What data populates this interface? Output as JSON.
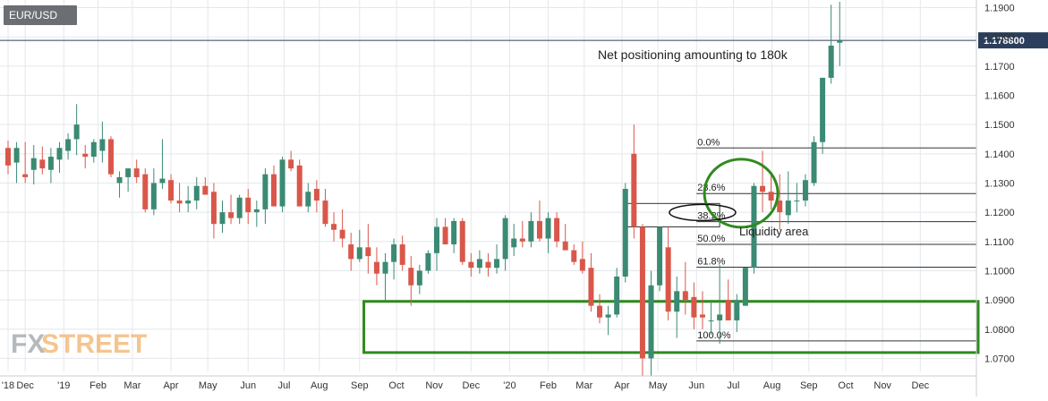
{
  "symbol": "EUR/USD",
  "watermark": {
    "fx": "FX",
    "street": "STREET"
  },
  "current_price": {
    "value": 1.1788,
    "label": "1.178800"
  },
  "annotations": {
    "net_positioning": "Net positioning amounting to 180k",
    "liquidity": "Liquidity area"
  },
  "colors": {
    "up": "#3b8a73",
    "down": "#d9574a",
    "box": "#2f8a1e",
    "grid": "#e4e7eb",
    "text": "#333333",
    "price_badge": "#2b3f5c"
  },
  "chart_data": {
    "type": "candlestick",
    "title": "EUR/USD",
    "timeframe": "weekly",
    "ylim": [
      1.064,
      1.192
    ],
    "y_ticks": [
      1.07,
      1.08,
      1.09,
      1.1,
      1.11,
      1.12,
      1.13,
      1.14,
      1.15,
      1.16,
      1.17,
      1.18,
      1.19
    ],
    "y_tick_labels": [
      "1.0700",
      "1.0800",
      "1.0900",
      "1.1000",
      "1.1100",
      "1.1200",
      "1.1300",
      "1.1400",
      "1.1500",
      "1.1600",
      "1.1700",
      "1.1800",
      "1.1900"
    ],
    "x_labels": [
      {
        "label": "'18",
        "week": 0
      },
      {
        "label": "Dec",
        "week": 2
      },
      {
        "label": "'19",
        "week": 6.5
      },
      {
        "label": "Feb",
        "week": 10.5
      },
      {
        "label": "Mar",
        "week": 14.5
      },
      {
        "label": "Apr",
        "week": 19
      },
      {
        "label": "May",
        "week": 23.3
      },
      {
        "label": "Jun",
        "week": 28
      },
      {
        "label": "Jul",
        "week": 32.2
      },
      {
        "label": "Aug",
        "week": 36.3
      },
      {
        "label": "Sep",
        "week": 41
      },
      {
        "label": "Oct",
        "week": 45.3
      },
      {
        "label": "Nov",
        "week": 49.7
      },
      {
        "label": "Dec",
        "week": 54
      },
      {
        "label": "'20",
        "week": 58.5
      },
      {
        "label": "Feb",
        "week": 63
      },
      {
        "label": "Mar",
        "week": 67.2
      },
      {
        "label": "Apr",
        "week": 71.6
      },
      {
        "label": "May",
        "week": 75.8
      },
      {
        "label": "Jun",
        "week": 80.3
      },
      {
        "label": "Jul",
        "week": 84.6
      },
      {
        "label": "Aug",
        "week": 89.1
      },
      {
        "label": "Sep",
        "week": 93.4
      },
      {
        "label": "Oct",
        "week": 97.7
      },
      {
        "label": "Nov",
        "week": 102
      },
      {
        "label": "Dec",
        "week": 106.4
      }
    ],
    "candles": [
      [
        1.142,
        1.1445,
        1.133,
        1.136
      ],
      [
        1.137,
        1.144,
        1.13,
        1.142
      ],
      [
        1.133,
        1.144,
        1.13,
        1.132
      ],
      [
        1.1345,
        1.143,
        1.1295,
        1.1385
      ],
      [
        1.138,
        1.1425,
        1.133,
        1.135
      ],
      [
        1.1345,
        1.142,
        1.13,
        1.139
      ],
      [
        1.138,
        1.144,
        1.1335,
        1.142
      ],
      [
        1.141,
        1.147,
        1.138,
        1.145
      ],
      [
        1.145,
        1.157,
        1.1395,
        1.15
      ],
      [
        1.14,
        1.143,
        1.135,
        1.139
      ],
      [
        1.139,
        1.145,
        1.137,
        1.144
      ],
      [
        1.141,
        1.151,
        1.137,
        1.145
      ],
      [
        1.145,
        1.146,
        1.132,
        1.133
      ],
      [
        1.13,
        1.134,
        1.125,
        1.132
      ],
      [
        1.132,
        1.135,
        1.127,
        1.135
      ],
      [
        1.135,
        1.138,
        1.13,
        1.132
      ],
      [
        1.133,
        1.135,
        1.12,
        1.121
      ],
      [
        1.121,
        1.135,
        1.119,
        1.13
      ],
      [
        1.13,
        1.145,
        1.128,
        1.1315
      ],
      [
        1.131,
        1.133,
        1.123,
        1.124
      ],
      [
        1.124,
        1.13,
        1.12,
        1.123
      ],
      [
        1.123,
        1.129,
        1.12,
        1.124
      ],
      [
        1.124,
        1.132,
        1.121,
        1.129
      ],
      [
        1.129,
        1.132,
        1.126,
        1.126
      ],
      [
        1.127,
        1.13,
        1.111,
        1.116
      ],
      [
        1.116,
        1.124,
        1.113,
        1.12
      ],
      [
        1.12,
        1.126,
        1.116,
        1.118
      ],
      [
        1.118,
        1.126,
        1.116,
        1.125
      ],
      [
        1.125,
        1.128,
        1.116,
        1.12
      ],
      [
        1.12,
        1.124,
        1.115,
        1.121
      ],
      [
        1.121,
        1.135,
        1.116,
        1.133
      ],
      [
        1.133,
        1.136,
        1.123,
        1.122
      ],
      [
        1.122,
        1.139,
        1.12,
        1.138
      ],
      [
        1.138,
        1.141,
        1.134,
        1.135
      ],
      [
        1.136,
        1.138,
        1.122,
        1.122
      ],
      [
        1.122,
        1.13,
        1.12,
        1.127
      ],
      [
        1.128,
        1.131,
        1.12,
        1.124
      ],
      [
        1.124,
        1.128,
        1.115,
        1.116
      ],
      [
        1.116,
        1.12,
        1.11,
        1.114
      ],
      [
        1.114,
        1.121,
        1.108,
        1.111
      ],
      [
        1.109,
        1.113,
        1.1,
        1.104
      ],
      [
        1.104,
        1.114,
        1.103,
        1.108
      ],
      [
        1.108,
        1.116,
        1.099,
        1.105
      ],
      [
        1.103,
        1.108,
        1.095,
        1.099
      ],
      [
        1.099,
        1.106,
        1.09,
        1.103
      ],
      [
        1.103,
        1.111,
        1.097,
        1.109
      ],
      [
        1.109,
        1.112,
        1.1,
        1.102
      ],
      [
        1.101,
        1.105,
        1.088,
        1.095
      ],
      [
        1.095,
        1.102,
        1.092,
        1.1
      ],
      [
        1.1,
        1.107,
        1.099,
        1.106
      ],
      [
        1.106,
        1.118,
        1.1,
        1.115
      ],
      [
        1.115,
        1.118,
        1.109,
        1.109
      ],
      [
        1.109,
        1.118,
        1.106,
        1.117
      ],
      [
        1.117,
        1.118,
        1.102,
        1.103
      ],
      [
        1.103,
        1.106,
        1.098,
        1.101
      ],
      [
        1.101,
        1.107,
        1.099,
        1.104
      ],
      [
        1.103,
        1.106,
        1.098,
        1.101
      ],
      [
        1.101,
        1.109,
        1.099,
        1.104
      ],
      [
        1.104,
        1.119,
        1.1,
        1.118
      ],
      [
        1.108,
        1.116,
        1.105,
        1.111
      ],
      [
        1.111,
        1.117,
        1.108,
        1.11
      ],
      [
        1.11,
        1.12,
        1.108,
        1.117
      ],
      [
        1.117,
        1.124,
        1.11,
        1.111
      ],
      [
        1.111,
        1.12,
        1.106,
        1.118
      ],
      [
        1.118,
        1.12,
        1.108,
        1.11
      ],
      [
        1.11,
        1.116,
        1.107,
        1.107
      ],
      [
        1.107,
        1.109,
        1.102,
        1.103
      ],
      [
        1.104,
        1.11,
        1.099,
        1.1
      ],
      [
        1.101,
        1.106,
        1.086,
        1.088
      ],
      [
        1.088,
        1.092,
        1.082,
        1.084
      ],
      [
        1.084,
        1.088,
        1.078,
        1.085
      ],
      [
        1.085,
        1.101,
        1.084,
        1.098
      ],
      [
        1.098,
        1.13,
        1.096,
        1.128
      ],
      [
        1.14,
        1.15,
        1.111,
        1.115
      ],
      [
        1.115,
        1.116,
        1.064,
        1.07
      ],
      [
        1.07,
        1.1,
        1.064,
        1.095
      ],
      [
        1.095,
        1.115,
        1.093,
        1.115
      ],
      [
        1.108,
        1.115,
        1.083,
        1.086
      ],
      [
        1.086,
        1.098,
        1.077,
        1.093
      ],
      [
        1.093,
        1.103,
        1.085,
        1.09
      ],
      [
        1.091,
        1.096,
        1.08,
        1.084
      ],
      [
        1.085,
        1.093,
        1.08,
        1.084
      ],
      [
        1.083,
        1.09,
        1.078,
        1.083
      ],
      [
        1.083,
        1.102,
        1.075,
        1.085
      ],
      [
        1.09,
        1.097,
        1.083,
        1.083
      ],
      [
        1.083,
        1.092,
        1.079,
        1.09
      ],
      [
        1.088,
        1.101,
        1.088,
        1.101
      ],
      [
        1.101,
        1.13,
        1.099,
        1.129
      ],
      [
        1.129,
        1.141,
        1.12,
        1.127
      ],
      [
        1.127,
        1.133,
        1.121,
        1.124
      ],
      [
        1.124,
        1.133,
        1.114,
        1.12
      ],
      [
        1.119,
        1.134,
        1.116,
        1.124
      ],
      [
        1.124,
        1.13,
        1.12,
        1.124
      ],
      [
        1.124,
        1.133,
        1.122,
        1.131
      ],
      [
        1.13,
        1.146,
        1.129,
        1.144
      ],
      [
        1.144,
        1.166,
        1.14,
        1.166
      ],
      [
        1.166,
        1.191,
        1.164,
        1.177
      ],
      [
        1.178,
        1.192,
        1.17,
        1.1788
      ]
    ],
    "fibonacci": {
      "levels": [
        {
          "label": "0.0%",
          "value": 1.142
        },
        {
          "label": "23.6%",
          "value": 1.1264
        },
        {
          "label": "38.2%",
          "value": 1.1168
        },
        {
          "label": "50.0%",
          "value": 1.109
        },
        {
          "label": "61.8%",
          "value": 1.1012
        },
        {
          "label": "100.0%",
          "value": 1.076
        }
      ]
    },
    "support_box": {
      "top": 1.0895,
      "bottom": 1.072,
      "from_week": 41.5,
      "to_week": 112
    },
    "liquidity_box": {
      "top": 1.123,
      "bottom": 1.115
    },
    "circle_zone": {
      "top": 1.138,
      "bottom": 1.115
    }
  }
}
